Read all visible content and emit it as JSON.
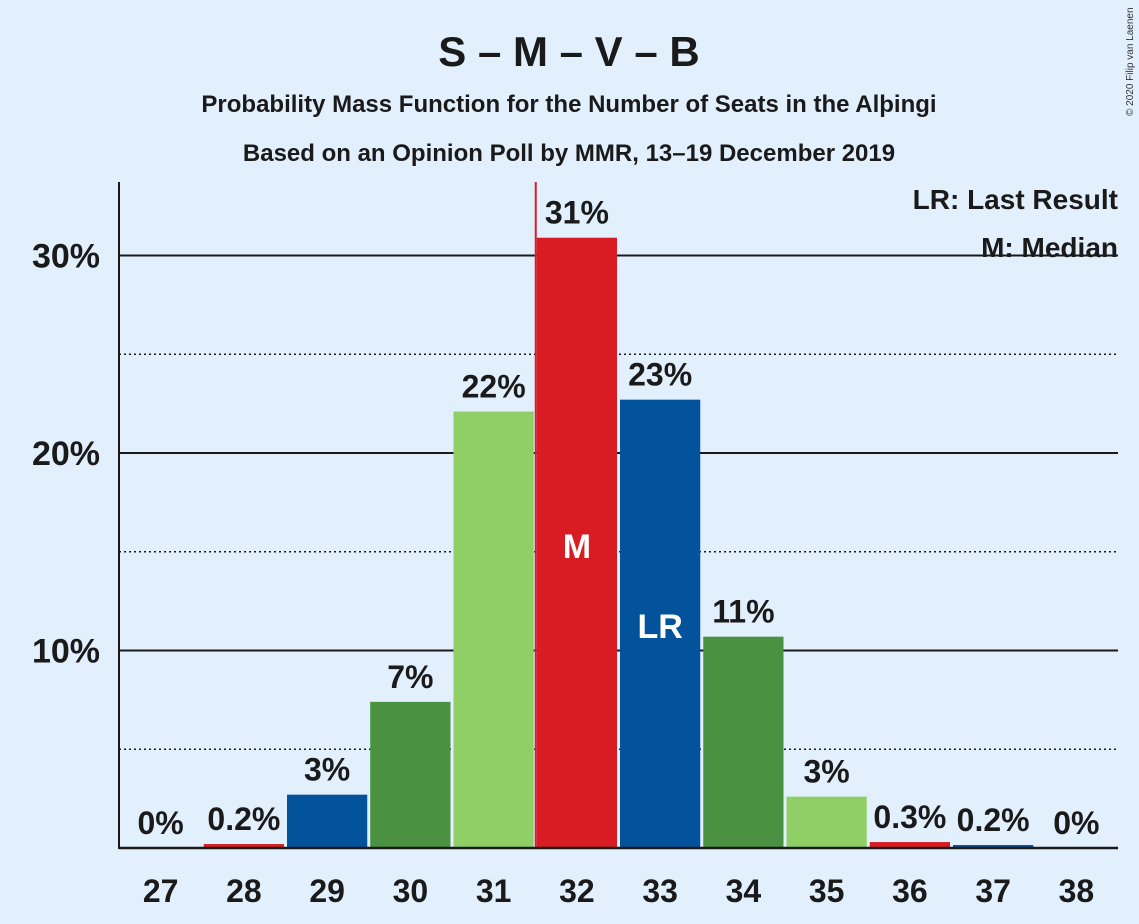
{
  "chart_data": {
    "type": "bar",
    "title": "S – M – V – B",
    "subtitle": "Probability Mass Function for the Number of Seats in the Alþingi",
    "subtitle2": "Based on an Opinion Poll by MMR, 13–19 December 2019",
    "credit": "© 2020 Filip van Laenen",
    "legend": [
      "LR: Last Result",
      "M: Median"
    ],
    "legend_position": "top-right",
    "categories": [
      "27",
      "28",
      "29",
      "30",
      "31",
      "32",
      "33",
      "34",
      "35",
      "36",
      "37",
      "38"
    ],
    "values": [
      0,
      0.2,
      2.7,
      7.4,
      22.1,
      30.9,
      22.7,
      10.7,
      2.6,
      0.3,
      0.15,
      0
    ],
    "data_labels": [
      "0%",
      "0.2%",
      "3%",
      "7%",
      "22%",
      "31%",
      "23%",
      "11%",
      "3%",
      "0.3%",
      "0.2%",
      "0%"
    ],
    "bar_colors": [
      "#d91c23",
      "#d91c23",
      "#02529c",
      "#4a9141",
      "#8fcf66",
      "#d91c23",
      "#02529c",
      "#4a9141",
      "#8fcf66",
      "#d91c23",
      "#02529c",
      "#4a9141"
    ],
    "median_seat": "32",
    "median_label": "M",
    "last_result_seat": "33",
    "last_result_label": "LR",
    "yticks": [
      10,
      20,
      30
    ],
    "ytick_labels": [
      "10%",
      "20%",
      "30%"
    ],
    "ylim": [
      0,
      33.5
    ],
    "grid": "solid at 10%, 20%, 30%; dotted at 5%, 15%, 25%"
  }
}
